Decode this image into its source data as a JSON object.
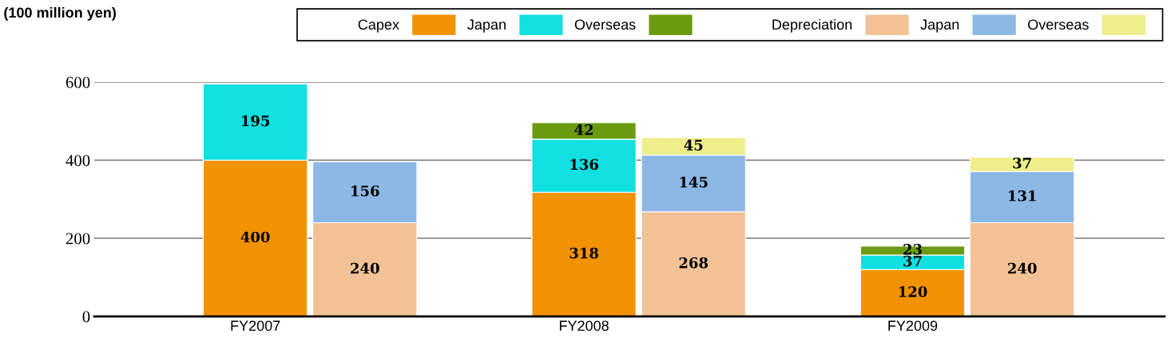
{
  "chart_data": {
    "type": "bar",
    "stacked": true,
    "ylabel": "(100 million yen)",
    "categories": [
      "FY2007",
      null,
      null,
      "FY2008",
      null,
      null,
      "FY2009",
      null
    ],
    "annotations": [
      "Capex",
      "Depreciation"
    ],
    "series": [
      {
        "name": "Japan",
        "color": "#f39200",
        "values": [
          400,
          null,
          null,
          318,
          null,
          null,
          120,
          null
        ]
      },
      {
        "name": "Overseas",
        "color": "#10e0e0",
        "values": [
          195,
          null,
          null,
          136,
          null,
          null,
          37,
          null
        ]
      },
      {
        "color": "#6a9a10",
        "values": [
          null,
          null,
          null,
          42,
          null,
          null,
          23,
          null
        ]
      },
      {
        "name": "Japan",
        "color": "#f2c296",
        "values": [
          null,
          240,
          null,
          null,
          268,
          null,
          null,
          240
        ]
      },
      {
        "name": "Overseas",
        "color": "#8cb8e6",
        "values": [
          null,
          156,
          null,
          null,
          145,
          null,
          null,
          131
        ]
      },
      {
        "color": "#eeee8c",
        "values": [
          null,
          null,
          null,
          null,
          45,
          null,
          null,
          37
        ]
      }
    ],
    "ylim": [
      0,
      600
    ],
    "yticks": [
      0,
      200,
      400,
      600
    ],
    "grid": "y",
    "legend": "top right",
    "data_labels": true
  }
}
